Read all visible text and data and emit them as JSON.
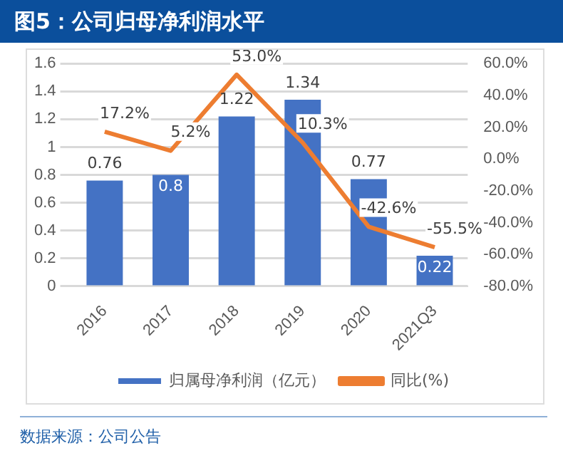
{
  "chart_data": {
    "type": "bar",
    "title": "图5：公司归母净利润水平",
    "categories": [
      "2016",
      "2017",
      "2018",
      "2019",
      "2020",
      "2021Q3"
    ],
    "series": [
      {
        "name": "归属母净利润（亿元）",
        "color": "#4472c4",
        "values": [
          0.76,
          0.8,
          1.22,
          1.34,
          0.77,
          0.22
        ],
        "value_labels": [
          "0.76",
          "0.8",
          "1.22",
          "1.34",
          "0.77",
          "0.22"
        ]
      },
      {
        "name": "同比(%)",
        "type": "line",
        "axis": "y2",
        "color": "#ed7d31",
        "values": [
          17.2,
          5.2,
          53.0,
          10.3,
          -42.6,
          -55.5
        ],
        "value_labels": [
          "17.2%",
          "5.2%",
          "53.0%",
          "10.3%",
          "-42.6%",
          "-55.5%"
        ]
      }
    ],
    "ylim": [
      0,
      1.6
    ],
    "yticks": [
      0,
      0.2,
      0.4,
      0.6,
      0.8,
      1,
      1.2,
      1.4,
      1.6
    ],
    "y2lim": [
      -80,
      60
    ],
    "y2ticks": [
      {
        "value": -80,
        "label": "-80.0%"
      },
      {
        "value": -60,
        "label": "-60.0%"
      },
      {
        "value": -40,
        "label": "-40.0%"
      },
      {
        "value": -20,
        "label": "-20.0%"
      },
      {
        "value": 0,
        "label": "0.0%"
      },
      {
        "value": 20,
        "label": "20.0%"
      },
      {
        "value": 40,
        "label": "40.0%"
      },
      {
        "value": 60,
        "label": "60.0%"
      }
    ],
    "grid": "y",
    "legend": "bottom",
    "marker": "none",
    "annotations": [
      "数据来源：公司公告"
    ]
  }
}
